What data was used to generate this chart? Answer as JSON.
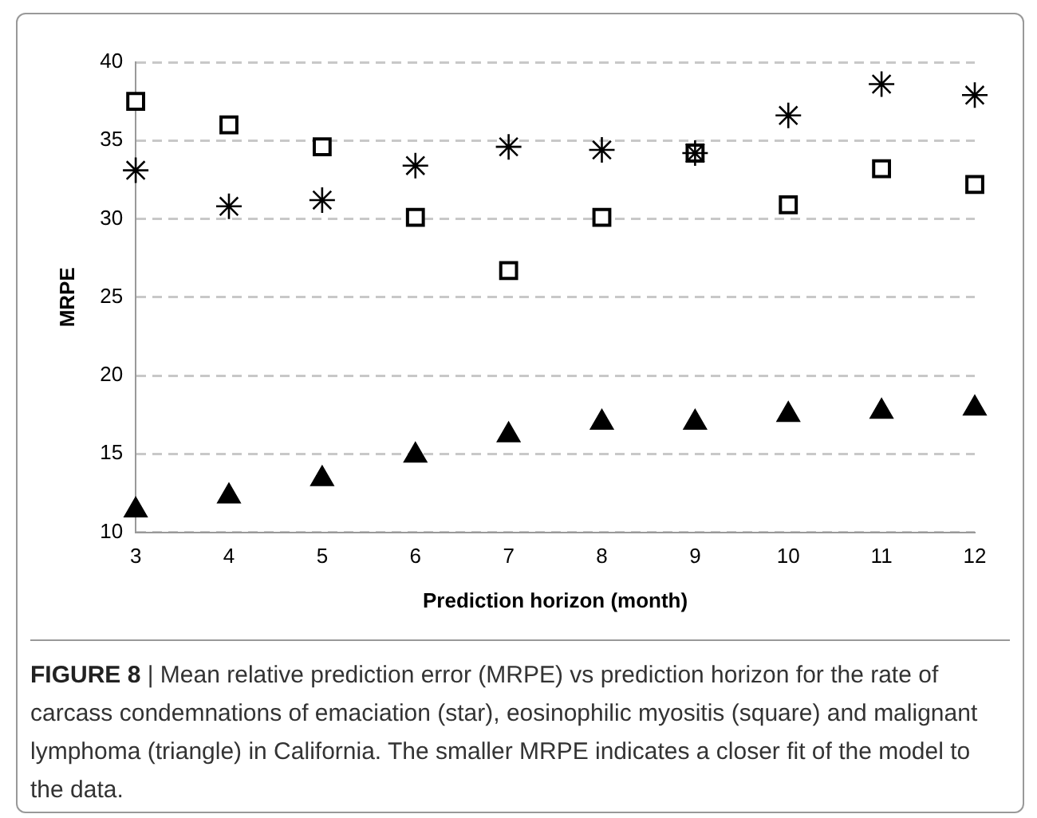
{
  "chart_data": {
    "type": "scatter",
    "xlabel": "Prediction horizon (month)",
    "ylabel": "MRPE",
    "categories": [
      "3",
      "4",
      "5",
      "6",
      "7",
      "8",
      "9",
      "10",
      "11",
      "12"
    ],
    "series": [
      {
        "color": "#000000",
        "marker": "cross",
        "values": [
          33.1,
          30.8,
          31.2,
          33.4,
          34.6,
          34.4,
          34.2,
          36.6,
          38.6,
          37.9
        ]
      },
      {
        "color": "#000000",
        "marker": "square",
        "values": [
          37.5,
          36.0,
          34.6,
          30.1,
          26.7,
          30.1,
          34.2,
          30.9,
          33.2,
          32.2
        ]
      },
      {
        "color": "#000000",
        "marker": "triangle",
        "values": [
          11.4,
          12.3,
          13.4,
          14.9,
          16.2,
          17.0,
          17.0,
          17.5,
          17.7,
          17.9
        ]
      }
    ],
    "ylim": [
      10,
      40
    ],
    "yticks": [
      10,
      15,
      20,
      25,
      30,
      35,
      40
    ],
    "grid": "y",
    "legend": false,
    "annotations": [
      "FIGURE 8 |  Mean relative prediction error (MRPE) vs prediction horizon for the rate of carcass condemnations of emaciation (star), eosinophilic myositis (square) and malignant lymphoma (triangle) in California. The smaller MRPE indicates a closer fit of the model to the data."
    ]
  }
}
